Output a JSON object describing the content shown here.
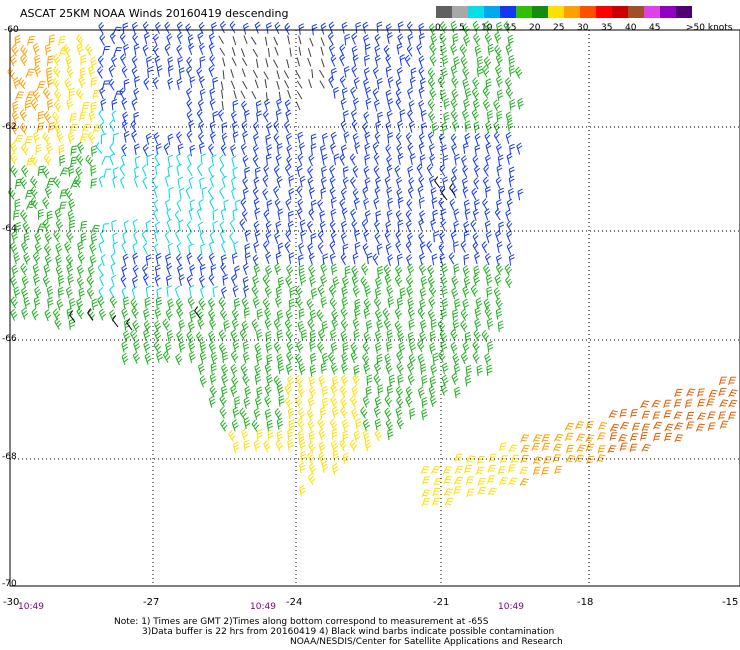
{
  "title": "ASCAT 25KM NOAA Winds 20160419 descending",
  "legend": {
    "unit_label": ">50 knots",
    "ticks": [
      "0",
      "5",
      "10",
      "15",
      "20",
      "25",
      "30",
      "35",
      "40",
      "45"
    ],
    "colors": [
      "#606060",
      "#a8a8a8",
      "#00e0e8",
      "#00a8f0",
      "#1438f0",
      "#30c000",
      "#148c14",
      "#ffe000",
      "#ffa000",
      "#ff5000",
      "#ff0000",
      "#c80000",
      "#a05028",
      "#e040e8",
      "#9000c0",
      "#500070"
    ]
  },
  "axes": {
    "lat_labels": [
      "-60",
      "-62",
      "-64",
      "-66",
      "-68",
      "-70"
    ],
    "lon_labels": [
      "-30",
      "-27",
      "-24",
      "-21",
      "-18",
      "-15"
    ]
  },
  "times": [
    "10:49",
    "10:49",
    "10:49"
  ],
  "notes": {
    "line1": "Note: 1) Times are GMT 2)Times along bottom correspond to measurement at -65S",
    "line2": "3)Data buffer is 22 hrs from 20160419 4) Black wind barbs indicate possible contamination",
    "line3": "NOAA/NESDIS/Center for Satellite Applications and Research"
  },
  "colors": {
    "contaminated": "#000000",
    "speed_0_5": "#404040",
    "speed_5_10": "#00d8e8",
    "speed_10_15": "#1438f0",
    "speed_15_20": "#20b020",
    "speed_20_25": "#ffe000",
    "speed_25_30": "#ffa000",
    "speed_30_35": "#e06000",
    "land_grid": "#000000"
  }
}
